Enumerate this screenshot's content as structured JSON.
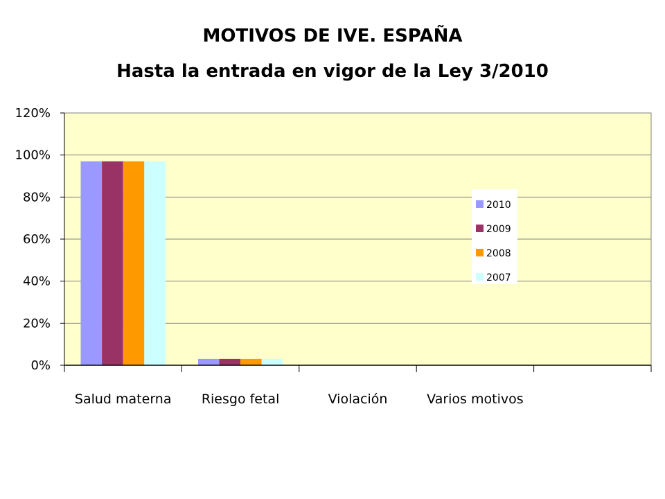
{
  "chart_data": {
    "type": "bar",
    "title": "MOTIVOS DE IVE. ESPAÑA",
    "subtitle": "Hasta la entrada en vigor de la Ley 3/2010",
    "categories": [
      "Salud materna",
      "Riesgo fetal",
      "Violación",
      "Varios motivos",
      ""
    ],
    "series": [
      {
        "name": "2010",
        "color": "#9999FF",
        "values": [
          97,
          3,
          0,
          0,
          0
        ]
      },
      {
        "name": "2009",
        "color": "#993366",
        "values": [
          97,
          3,
          0,
          0,
          0
        ]
      },
      {
        "name": "2008",
        "color": "#FF9900",
        "values": [
          97,
          3,
          0,
          0,
          0
        ]
      },
      {
        "name": "2007",
        "color": "#CCFFFF",
        "values": [
          97,
          3,
          0,
          0,
          0
        ]
      }
    ],
    "ylim": [
      0,
      120
    ],
    "yticks": [
      "0%",
      "20%",
      "40%",
      "60%",
      "80%",
      "100%",
      "120%"
    ],
    "ytick_values": [
      0,
      20,
      40,
      60,
      80,
      100,
      120
    ],
    "grid": true,
    "legend_position": "right",
    "plot_background": "#FFFFCC"
  }
}
